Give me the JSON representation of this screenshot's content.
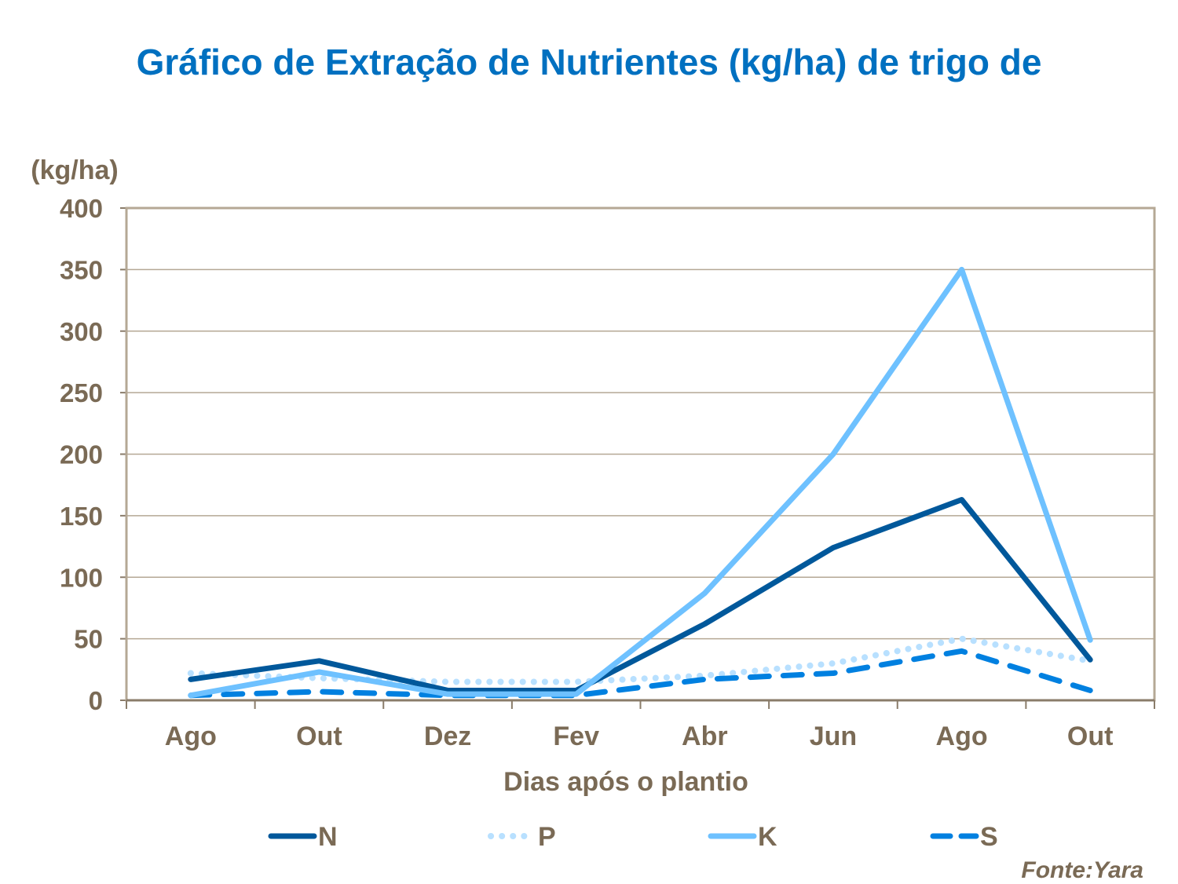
{
  "chart_data": {
    "type": "line",
    "title": "Gráfico de Extração de Nutrientes (kg/ha) de trigo de",
    "ylabel": "(kg/ha)",
    "xlabel": "Dias após o plantio",
    "categories": [
      "Ago",
      "Out",
      "Dez",
      "Fev",
      "Abr",
      "Jun",
      "Ago",
      "Out"
    ],
    "ylim": [
      0,
      400
    ],
    "yticks": [
      0,
      50,
      100,
      150,
      200,
      250,
      300,
      350,
      400
    ],
    "grid": true,
    "legend_placement": "bottom",
    "series": [
      {
        "name": "N",
        "color": "#00589B",
        "style": "solid",
        "values": [
          17,
          32,
          8,
          8,
          62,
          124,
          163,
          33
        ]
      },
      {
        "name": "P",
        "color": "#B8E0FF",
        "style": "dotted",
        "values": [
          22,
          18,
          15,
          15,
          20,
          30,
          50,
          32
        ]
      },
      {
        "name": "K",
        "color": "#6EC1FF",
        "style": "solid",
        "values": [
          4,
          23,
          5,
          5,
          87,
          200,
          350,
          49
        ]
      },
      {
        "name": "S",
        "color": "#0080E0",
        "style": "dashed",
        "values": [
          4,
          7,
          4,
          4,
          17,
          22,
          40,
          8
        ]
      }
    ]
  },
  "source": "Fonte:Yara"
}
